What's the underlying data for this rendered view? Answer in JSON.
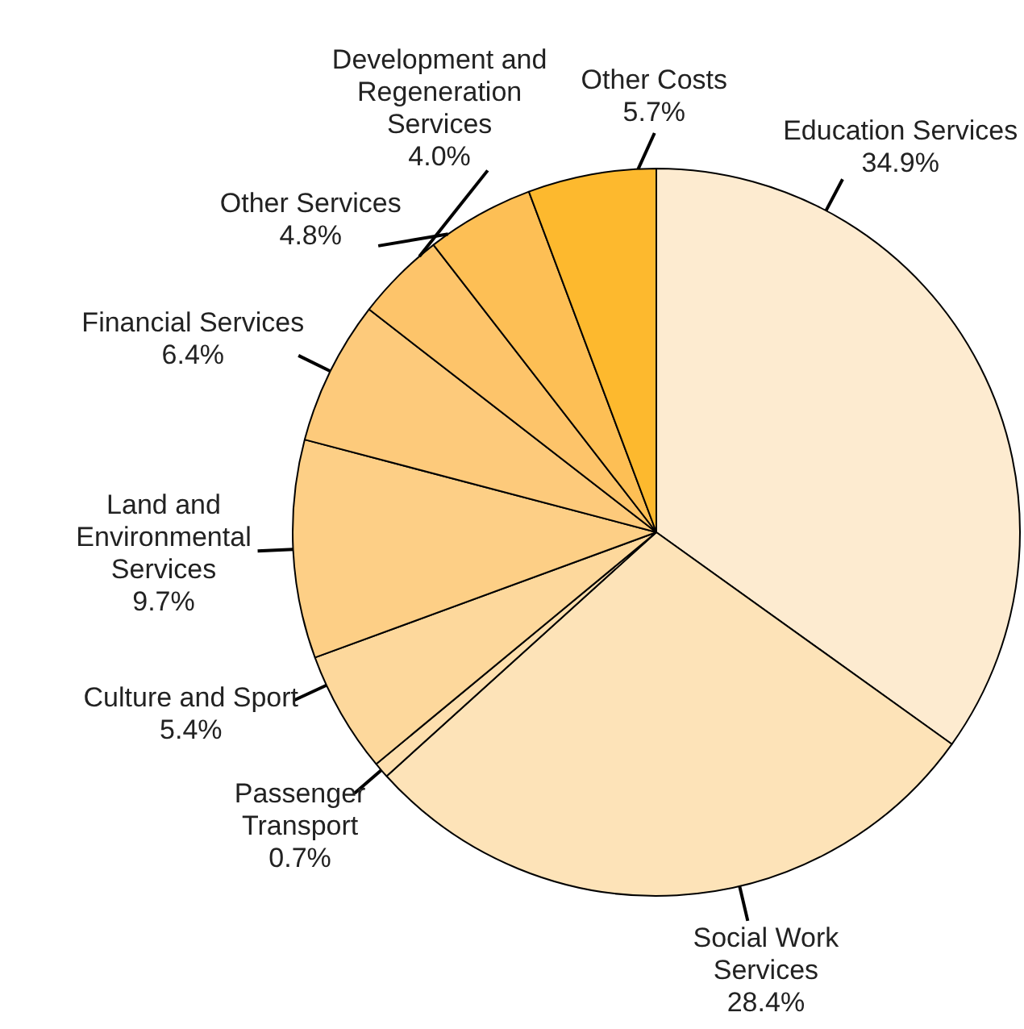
{
  "chart_data": {
    "type": "pie",
    "categories": [
      "Education Services",
      "Social Work Services",
      "Passenger Transport",
      "Culture and Sport",
      "Land and Environmental Services",
      "Financial Services",
      "Development and Regeneration Services",
      "Other Services",
      "Other Costs"
    ],
    "values": [
      34.9,
      28.4,
      0.7,
      5.4,
      9.7,
      6.4,
      4.0,
      4.8,
      5.7
    ],
    "value_labels": [
      "34.9%",
      "28.4%",
      "0.7%",
      "5.4%",
      "9.7%",
      "6.4%",
      "4.0%",
      "4.8%",
      "5.7%"
    ],
    "colors": [
      "#fdebd0",
      "#fde3b8",
      "#fddfae",
      "#fdd89c",
      "#fdcf86",
      "#fdca7b",
      "#fdc46a",
      "#fdbf55",
      "#fdb92e"
    ],
    "legend": false
  }
}
